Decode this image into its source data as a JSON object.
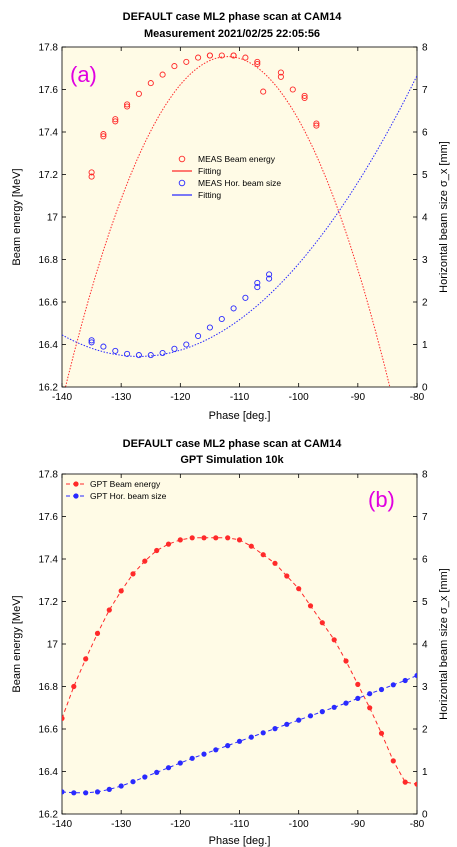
{
  "colors": {
    "red": "#ff2a2a",
    "blue": "#2a2aff",
    "panel_label": "#e000e0",
    "plot_background": "#fffbe6"
  },
  "chart_data": [
    {
      "type": "scatter",
      "panel_label": "(a)",
      "title": "DEFAULT case ML2 phase scan at CAM14",
      "subtitle": "Measurement 2021/02/25 22:05:56",
      "xlabel": "Phase [deg.]",
      "ylabel": "Beam energy [MeV]",
      "ylabel_right": "Horizontal beam size σ_x [mm]",
      "xlim": [
        -140,
        -80
      ],
      "ylim": [
        16.2,
        17.8
      ],
      "ylim_right": [
        0,
        8
      ],
      "xticks": [
        -140,
        -130,
        -120,
        -110,
        -100,
        -90,
        -80
      ],
      "yticks": [
        16.2,
        16.4,
        16.6,
        16.8,
        17,
        17.2,
        17.4,
        17.6,
        17.8
      ],
      "yticks_right": [
        0,
        1,
        2,
        3,
        4,
        5,
        6,
        7,
        8
      ],
      "legend_position": "center",
      "grid": false,
      "series": [
        {
          "name": "MEAS Beam energy",
          "axis": "left",
          "style": "markers",
          "marker": "open-circle",
          "color": "#ff2a2a",
          "x": [
            -135,
            -135,
            -133,
            -133,
            -131,
            -131,
            -129,
            -129,
            -127,
            -125,
            -123,
            -121,
            -119,
            -117,
            -115,
            -115,
            -113,
            -111,
            -111,
            -109,
            -107,
            -107,
            -106,
            -103,
            -103,
            -101,
            -99,
            -99,
            -97,
            -97
          ],
          "y": [
            17.21,
            17.19,
            17.38,
            17.39,
            17.46,
            17.45,
            17.52,
            17.53,
            17.58,
            17.63,
            17.67,
            17.71,
            17.73,
            17.75,
            17.76,
            17.76,
            17.76,
            17.76,
            17.76,
            17.75,
            17.72,
            17.73,
            17.59,
            17.68,
            17.66,
            17.6,
            17.56,
            17.57,
            17.44,
            17.43
          ]
        },
        {
          "name": "Fitting",
          "axis": "left",
          "style": "dotted-line",
          "color": "#ff2a2a",
          "fit": {
            "type": "parabola",
            "vertex_x": -112,
            "vertex_y": 17.755,
            "curvature": -0.00207
          }
        },
        {
          "name": "MEAS Hor. beam size",
          "axis": "right",
          "style": "markers",
          "marker": "open-circle",
          "color": "#2a2aff",
          "x": [
            -135,
            -135,
            -133,
            -131,
            -129,
            -127,
            -125,
            -123,
            -121,
            -119,
            -117,
            -115,
            -113,
            -111,
            -109,
            -107,
            -107,
            -105,
            -105
          ],
          "y": [
            1.1,
            1.05,
            0.95,
            0.85,
            0.78,
            0.75,
            0.75,
            0.8,
            0.9,
            1.0,
            1.2,
            1.4,
            1.6,
            1.85,
            2.1,
            2.35,
            2.45,
            2.55,
            2.65
          ]
        },
        {
          "name": "Fitting",
          "axis": "right",
          "style": "dotted-line",
          "color": "#2a2aff",
          "fit": {
            "type": "parabola",
            "vertex_x": -127,
            "vertex_y": 0.72,
            "curvature": 0.00299
          }
        }
      ]
    },
    {
      "type": "line",
      "panel_label": "(b)",
      "title": "DEFAULT case ML2 phase scan at CAM14",
      "subtitle": "GPT Simulation 10k",
      "xlabel": "Phase [deg.]",
      "ylabel": "Beam energy [MeV]",
      "ylabel_right": "Horizontal beam size σ_x [mm]",
      "xlim": [
        -140,
        -80
      ],
      "ylim": [
        16.2,
        17.8
      ],
      "ylim_right": [
        0,
        8
      ],
      "xticks": [
        -140,
        -130,
        -120,
        -110,
        -100,
        -90,
        -80
      ],
      "yticks": [
        16.2,
        16.4,
        16.6,
        16.8,
        17,
        17.2,
        17.4,
        17.6,
        17.8
      ],
      "yticks_right": [
        0,
        1,
        2,
        3,
        4,
        5,
        6,
        7,
        8
      ],
      "legend_position": "top-left",
      "grid": false,
      "series": [
        {
          "name": "GPT Beam energy",
          "axis": "left",
          "style": "dashed-line-markers",
          "marker": "filled-circle",
          "color": "#ff2a2a",
          "x": [
            -140,
            -138,
            -136,
            -134,
            -132,
            -130,
            -128,
            -126,
            -124,
            -122,
            -120,
            -118,
            -116,
            -114,
            -112,
            -110,
            -108,
            -106,
            -104,
            -102,
            -100,
            -98,
            -96,
            -94,
            -92,
            -90,
            -88,
            -86,
            -84,
            -82,
            -80
          ],
          "y": [
            16.65,
            16.8,
            16.93,
            17.05,
            17.16,
            17.25,
            17.33,
            17.39,
            17.44,
            17.47,
            17.49,
            17.5,
            17.5,
            17.5,
            17.5,
            17.49,
            17.46,
            17.42,
            17.38,
            17.32,
            17.26,
            17.18,
            17.1,
            17.02,
            16.92,
            16.81,
            16.7,
            16.58,
            16.45,
            16.35,
            16.34
          ]
        },
        {
          "name": "GPT Hor. beam size",
          "axis": "right",
          "style": "dashed-line-markers",
          "marker": "filled-circle",
          "color": "#2a2aff",
          "x": [
            -140,
            -138,
            -136,
            -134,
            -132,
            -130,
            -128,
            -126,
            -124,
            -122,
            -120,
            -118,
            -116,
            -114,
            -112,
            -110,
            -108,
            -106,
            -104,
            -102,
            -100,
            -98,
            -96,
            -94,
            -92,
            -90,
            -88,
            -86,
            -84,
            -82,
            -80
          ],
          "y": [
            0.52,
            0.5,
            0.5,
            0.52,
            0.58,
            0.66,
            0.76,
            0.87,
            0.98,
            1.09,
            1.2,
            1.31,
            1.41,
            1.51,
            1.61,
            1.71,
            1.81,
            1.91,
            2.01,
            2.11,
            2.21,
            2.31,
            2.41,
            2.51,
            2.61,
            2.72,
            2.83,
            2.93,
            3.04,
            3.14,
            3.26
          ]
        }
      ]
    }
  ]
}
